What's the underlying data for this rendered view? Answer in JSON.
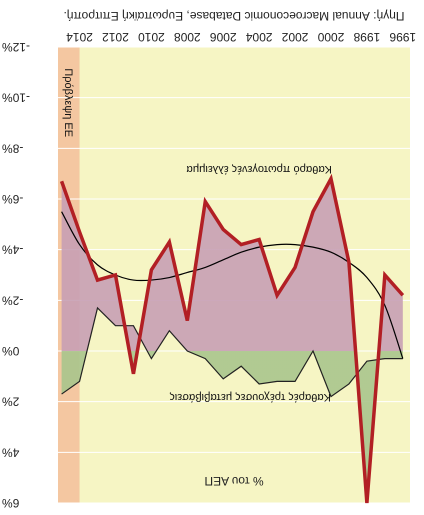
{
  "chart_data": {
    "type": "line",
    "title": "",
    "orientation": "rotated 180 degrees",
    "source": "Πηγή: Annual Macroeconomic Database, Ευρωπαϊκή Επιτροπή.",
    "ylabel": "% του ΑΕΠ",
    "xlabel": "",
    "x_ticks": [
      "1996",
      "1998",
      "2000",
      "2002",
      "2004",
      "2006",
      "2008",
      "2010",
      "2012",
      "2014"
    ],
    "y_ticks": [
      -12,
      -10,
      -8,
      -6,
      -4,
      -2,
      0,
      2,
      4,
      6
    ],
    "y_tick_labels": [
      "-12%",
      "-10%",
      "-8%",
      "-6%",
      "-4%",
      "-2%",
      "0%",
      "2%",
      "4%",
      "6%"
    ],
    "ylim": [
      -12,
      6
    ],
    "xlim": [
      1995.6,
      2015.2
    ],
    "forecast_region": {
      "from": 2014,
      "to": 2015.2,
      "label": "Πρόβλεψη ΕΕ"
    },
    "grid": true,
    "annotations": [
      "Καθαρό πρωτογενές έλλειμμα",
      "Καθαρές τρέχουσες μεταβιβάσεις"
    ],
    "x": [
      1996,
      1997,
      1998,
      1999,
      2000,
      2001,
      2002,
      2003,
      2004,
      2005,
      2006,
      2007,
      2008,
      2009,
      2010,
      2011,
      2012,
      2013,
      2014,
      2015
    ],
    "series": [
      {
        "values": [
          -2.2,
          -3.0,
          6.0,
          -3.5,
          -6.8,
          -5.5,
          -3.3,
          -2.2,
          -4.4,
          -4.2,
          -4.8,
          -5.9,
          -1.2,
          -4.3,
          -3.2,
          0.9,
          -3.0,
          -2.8,
          -4.7,
          -6.7
        ]
      },
      {
        "values": [
          0.3,
          0.3,
          0.4,
          1.3,
          1.8,
          0.0,
          1.2,
          1.2,
          1.3,
          0.6,
          1.1,
          0.3,
          0.0,
          -0.8,
          0.3,
          -1.0,
          -1.0,
          -1.7,
          1.2,
          1.7
        ]
      },
      {
        "values": [
          0.3,
          -1.8,
          -2.9,
          -3.5,
          -3.9,
          -4.1,
          -4.2,
          -4.2,
          -4.1,
          -3.9,
          -3.6,
          -3.3,
          -3.1,
          -2.9,
          -2.8,
          -2.8,
          -3.0,
          -3.4,
          -4.2,
          -5.5
        ]
      }
    ],
    "colors": {
      "plot_bg": "#f6f5c4",
      "forecast_bg": "#f4c29d",
      "positive_fill": "#c79fb4",
      "negative_fill": "#a9c58c",
      "series_1": "#b21f24",
      "series_2": "#222222",
      "series_3": "#000000"
    }
  }
}
